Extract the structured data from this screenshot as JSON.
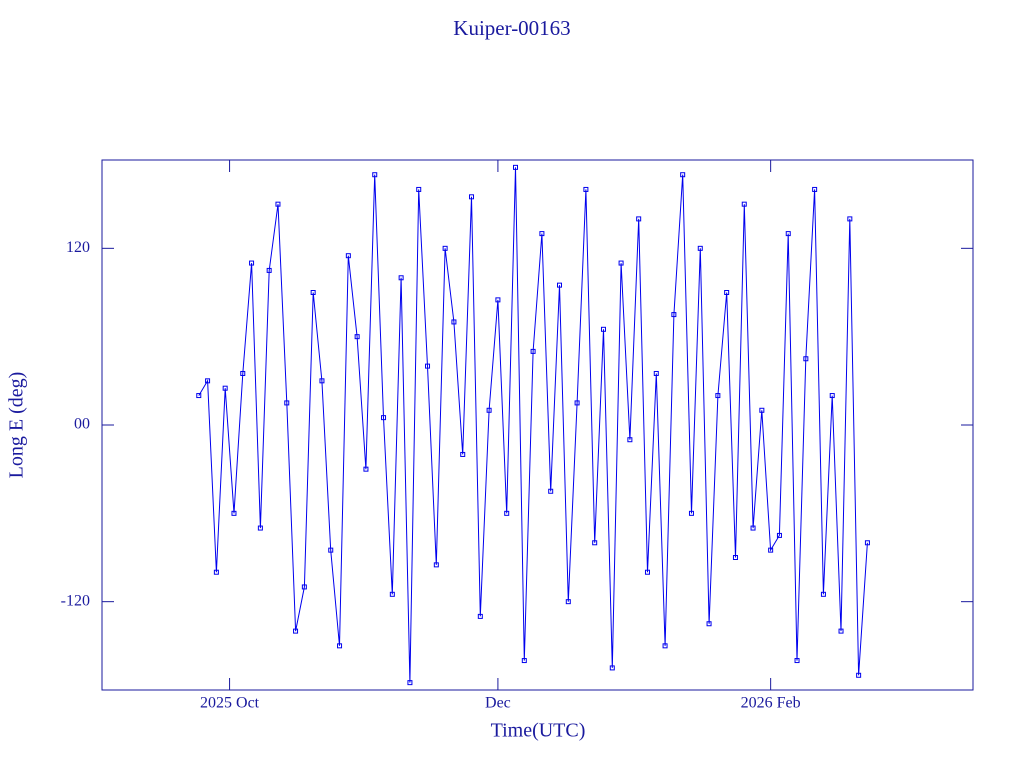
{
  "chart_data": {
    "type": "line",
    "title": "Kuiper-00163",
    "xlabel": "Time(UTC)",
    "ylabel": "Long E (deg)",
    "color": "#0000ee",
    "x": [
      "2025-09-24",
      "2025-09-26",
      "2025-09-28",
      "2025-09-30",
      "2025-10-02",
      "2025-10-04",
      "2025-10-06",
      "2025-10-08",
      "2025-10-10",
      "2025-10-12",
      "2025-10-14",
      "2025-10-16",
      "2025-10-18",
      "2025-10-20",
      "2025-10-22",
      "2025-10-24",
      "2025-10-26",
      "2025-10-28",
      "2025-10-30",
      "2025-11-01",
      "2025-11-03",
      "2025-11-05",
      "2025-11-07",
      "2025-11-09",
      "2025-11-11",
      "2025-11-13",
      "2025-11-15",
      "2025-11-17",
      "2025-11-19",
      "2025-11-21",
      "2025-11-23",
      "2025-11-25",
      "2025-11-27",
      "2025-11-29",
      "2025-12-01",
      "2025-12-03",
      "2025-12-05",
      "2025-12-07",
      "2025-12-09",
      "2025-12-11",
      "2025-12-13",
      "2025-12-15",
      "2025-12-17",
      "2025-12-19",
      "2025-12-21",
      "2025-12-23",
      "2025-12-25",
      "2025-12-27",
      "2025-12-29",
      "2025-12-31",
      "2026-01-02",
      "2026-01-04",
      "2026-01-06",
      "2026-01-08",
      "2026-01-10",
      "2026-01-12",
      "2026-01-14",
      "2026-01-16",
      "2026-01-18",
      "2026-01-20",
      "2026-01-22",
      "2026-01-24",
      "2026-01-26",
      "2026-01-28",
      "2026-01-30",
      "2026-02-01",
      "2026-02-03",
      "2026-02-05",
      "2026-02-07",
      "2026-02-09",
      "2026-02-11",
      "2026-02-13",
      "2026-02-15",
      "2026-02-17",
      "2026-02-19",
      "2026-02-21",
      "2026-02-23"
    ],
    "values": [
      20,
      30,
      -100,
      25,
      -60,
      35,
      110,
      -70,
      105,
      150,
      15,
      -140,
      -110,
      90,
      30,
      -85,
      -150,
      115,
      60,
      -30,
      170,
      5,
      -115,
      100,
      -175,
      160,
      40,
      -95,
      120,
      70,
      -20,
      155,
      -130,
      10,
      85,
      -60,
      175,
      -160,
      50,
      130,
      -45,
      95,
      -120,
      15,
      160,
      -80,
      65,
      -165,
      110,
      -10,
      140,
      -100,
      35,
      -150,
      75,
      170,
      -60,
      120,
      -135,
      20,
      90,
      -90,
      150,
      -70,
      10,
      -85,
      -75,
      130,
      -160,
      45,
      160,
      -115,
      20,
      -140,
      140,
      -170,
      -80
    ],
    "xlim": [
      "2025-09-02",
      "2026-03-19"
    ],
    "xticks": [
      {
        "value": "2025-10-01",
        "label": "2025 Oct"
      },
      {
        "value": "2025-12-01",
        "label": "Dec"
      },
      {
        "value": "2026-02-01",
        "label": "2026 Feb"
      }
    ],
    "ylim": [
      -180,
      180
    ],
    "yticks": [
      -120,
      {
        "value": 0,
        "label": "00"
      },
      120
    ]
  }
}
